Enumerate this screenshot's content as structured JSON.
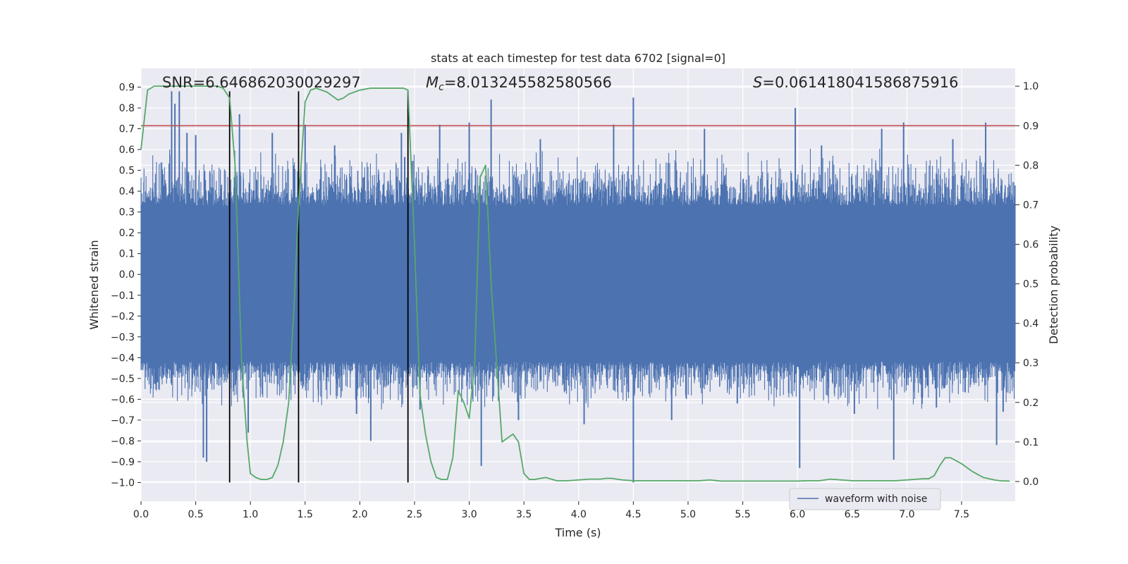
{
  "chart_data": {
    "type": "line",
    "title": "stats at each timestep for test data 6702 [signal=0]",
    "xlabel": "Time (s)",
    "ylabel_left": "Whitened strain",
    "ylabel_right": "Detection probability",
    "xlim": [
      0.0,
      7.99
    ],
    "ylim_left": [
      -1.09,
      0.99
    ],
    "ylim_right": [
      -0.05,
      1.045
    ],
    "x_ticks": [
      0.0,
      0.5,
      1.0,
      1.5,
      2.0,
      2.5,
      3.0,
      3.5,
      4.0,
      4.5,
      5.0,
      5.5,
      6.0,
      6.5,
      7.0,
      7.5
    ],
    "x_tick_labels": [
      "0.0",
      "0.5",
      "1.0",
      "1.5",
      "2.0",
      "2.5",
      "3.0",
      "3.5",
      "4.0",
      "4.5",
      "5.0",
      "5.5",
      "6.0",
      "6.5",
      "7.0",
      "7.5"
    ],
    "y_left_ticks": [
      0.9,
      0.8,
      0.7,
      0.6,
      0.5,
      0.4,
      0.3,
      0.2,
      0.1,
      0.0,
      -0.1,
      -0.2,
      -0.3,
      -0.4,
      -0.5,
      -0.6,
      -0.7,
      -0.8,
      -0.9,
      -1.0
    ],
    "y_left_tick_labels": [
      "0.9",
      "0.8",
      "0.7",
      "0.6",
      "0.5",
      "0.4",
      "0.3",
      "0.2",
      "0.1",
      "0.0",
      "−0.1",
      "−0.2",
      "−0.3",
      "−0.4",
      "−0.5",
      "−0.6",
      "−0.7",
      "−0.8",
      "−0.9",
      "−1.0"
    ],
    "y_right_ticks": [
      1.0,
      0.9,
      0.8,
      0.7,
      0.6,
      0.5,
      0.4,
      0.3,
      0.2,
      0.1,
      0.0
    ],
    "y_right_tick_labels": [
      "1.0",
      "0.9",
      "0.8",
      "0.7",
      "0.6",
      "0.5",
      "0.4",
      "0.3",
      "0.2",
      "0.1",
      "0.0"
    ],
    "grid": true,
    "stats": {
      "snr": "SNR=6.646862030029297",
      "mc_symbol": "M",
      "mc_subscript": "c",
      "mc_value": "=8.013245582580566",
      "s_symbol": "S",
      "s_value": "=0.061418041586875916"
    },
    "threshold": {
      "value": 0.9,
      "axis": "right",
      "color": "#c44e52"
    },
    "vertical_markers": [
      0.81,
      1.44,
      2.44
    ],
    "waveform": {
      "name": "waveform with noise",
      "color": "#4c72b0",
      "x_range": [
        0.0,
        7.99
      ],
      "core_amplitude": [
        -0.42,
        0.33
      ],
      "spikes": [
        [
          0.28,
          0.88
        ],
        [
          0.31,
          0.82
        ],
        [
          0.35,
          0.88
        ],
        [
          0.42,
          0.68
        ],
        [
          0.5,
          0.67
        ],
        [
          0.57,
          -0.88
        ],
        [
          0.6,
          -0.9
        ],
        [
          0.9,
          0.77
        ],
        [
          0.98,
          -0.76
        ],
        [
          1.2,
          0.68
        ],
        [
          1.5,
          0.72
        ],
        [
          1.77,
          0.62
        ],
        [
          1.97,
          -0.67
        ],
        [
          2.1,
          -0.8
        ],
        [
          2.38,
          0.68
        ],
        [
          2.55,
          -0.65
        ],
        [
          2.73,
          0.72
        ],
        [
          3.0,
          0.73
        ],
        [
          3.11,
          -0.92
        ],
        [
          3.2,
          0.84
        ],
        [
          3.45,
          -0.7
        ],
        [
          3.65,
          0.65
        ],
        [
          4.05,
          -0.72
        ],
        [
          4.32,
          0.72
        ],
        [
          4.5,
          0.85
        ],
        [
          4.5,
          -1.0
        ],
        [
          4.85,
          -0.7
        ],
        [
          5.15,
          0.7
        ],
        [
          5.45,
          -0.62
        ],
        [
          5.92,
          -0.57
        ],
        [
          5.98,
          0.8
        ],
        [
          6.02,
          -0.93
        ],
        [
          6.22,
          0.62
        ],
        [
          6.52,
          -0.67
        ],
        [
          6.77,
          0.7
        ],
        [
          6.88,
          -0.89
        ],
        [
          6.97,
          0.73
        ],
        [
          7.27,
          -0.64
        ],
        [
          7.42,
          0.65
        ],
        [
          7.72,
          0.73
        ],
        [
          7.82,
          -0.82
        ],
        [
          7.88,
          -0.66
        ]
      ]
    },
    "detection_probability": {
      "name": "detection probability",
      "color": "#55a868",
      "x": [
        0.0,
        0.06,
        0.12,
        0.2,
        0.3,
        0.4,
        0.5,
        0.6,
        0.7,
        0.75,
        0.81,
        0.86,
        0.92,
        0.97,
        1.0,
        1.05,
        1.1,
        1.15,
        1.2,
        1.25,
        1.3,
        1.35,
        1.4,
        1.44,
        1.5,
        1.55,
        1.6,
        1.65,
        1.7,
        1.75,
        1.8,
        1.85,
        1.9,
        1.95,
        2.0,
        2.1,
        2.2,
        2.3,
        2.4,
        2.44,
        2.5,
        2.55,
        2.6,
        2.65,
        2.7,
        2.75,
        2.8,
        2.85,
        2.9,
        2.95,
        3.0,
        3.05,
        3.1,
        3.15,
        3.2,
        3.25,
        3.3,
        3.35,
        3.4,
        3.45,
        3.5,
        3.55,
        3.6,
        3.65,
        3.7,
        3.8,
        3.9,
        4.0,
        4.1,
        4.2,
        4.25,
        4.3,
        4.4,
        4.5,
        4.6,
        4.7,
        4.8,
        4.9,
        5.0,
        5.1,
        5.2,
        5.3,
        5.4,
        5.5,
        5.6,
        5.7,
        5.8,
        5.9,
        6.0,
        6.1,
        6.2,
        6.3,
        6.4,
        6.5,
        6.6,
        6.7,
        6.8,
        6.9,
        7.0,
        7.1,
        7.15,
        7.2,
        7.25,
        7.3,
        7.35,
        7.4,
        7.5,
        7.6,
        7.7,
        7.8,
        7.85,
        7.94
      ],
      "y": [
        0.84,
        0.99,
        1.0,
        1.0,
        1.0,
        1.0,
        1.0,
        1.0,
        1.0,
        0.995,
        0.97,
        0.8,
        0.3,
        0.1,
        0.02,
        0.01,
        0.005,
        0.005,
        0.01,
        0.04,
        0.1,
        0.2,
        0.45,
        0.7,
        0.96,
        0.99,
        0.995,
        0.99,
        0.985,
        0.975,
        0.965,
        0.97,
        0.98,
        0.985,
        0.99,
        0.995,
        0.995,
        0.995,
        0.995,
        0.99,
        0.6,
        0.22,
        0.12,
        0.05,
        0.01,
        0.005,
        0.005,
        0.06,
        0.23,
        0.2,
        0.16,
        0.3,
        0.77,
        0.8,
        0.5,
        0.3,
        0.1,
        0.11,
        0.12,
        0.1,
        0.02,
        0.005,
        0.005,
        0.008,
        0.01,
        0.002,
        0.002,
        0.004,
        0.006,
        0.006,
        0.008,
        0.008,
        0.004,
        0.002,
        0.002,
        0.002,
        0.002,
        0.002,
        0.002,
        0.002,
        0.004,
        0.001,
        0.001,
        0.001,
        0.001,
        0.001,
        0.001,
        0.001,
        0.001,
        0.002,
        0.002,
        0.006,
        0.004,
        0.002,
        0.002,
        0.002,
        0.002,
        0.002,
        0.004,
        0.006,
        0.007,
        0.007,
        0.015,
        0.04,
        0.06,
        0.06,
        0.045,
        0.025,
        0.01,
        0.004,
        0.002,
        0.001
      ]
    },
    "legend": {
      "entries": [
        "waveform with noise"
      ],
      "position": "lower-right"
    }
  }
}
